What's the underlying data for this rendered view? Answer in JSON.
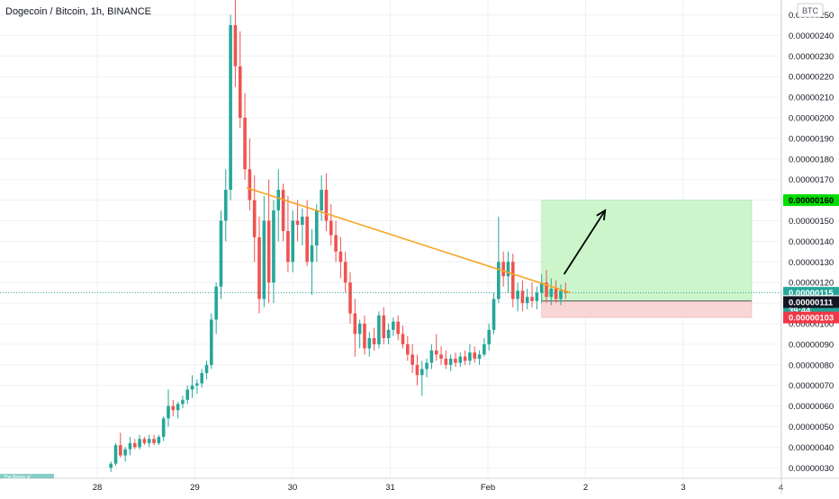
{
  "header": {
    "title": "Dogecoin / Bitcoin, 1h, BINANCE",
    "currency_button": "BTC",
    "bottom_strip": "The Bloom of"
  },
  "colors": {
    "up": "#26a69a",
    "down": "#ef5350",
    "trendline": "#f5a623",
    "arrow": "#000000",
    "target_zone": "#ccf5cc",
    "stop_zone": "#f9d6d6",
    "last_price_tag": "#26a69a",
    "target_tag": "#00dd00",
    "stop_tag": "#f23645",
    "grid": "#eef0f3"
  },
  "chart_data": {
    "type": "candlestick",
    "symbol": "Dogecoin / Bitcoin",
    "interval": "1h",
    "exchange": "BINANCE",
    "x_ticks": [
      "28",
      "29",
      "30",
      "31",
      "Feb",
      "2",
      "3",
      "4"
    ],
    "y_ticks": [
      "0.00000250",
      "0.00000240",
      "0.00000230",
      "0.00000220",
      "0.00000210",
      "0.00000200",
      "0.00000190",
      "0.00000180",
      "0.00000170",
      "0.00000160",
      "0.00000150",
      "0.00000140",
      "0.00000130",
      "0.00000120",
      "0.00000110",
      "0.00000100",
      "0.00000090",
      "0.00000080",
      "0.00000070",
      "0.00000060",
      "0.00000050",
      "0.00000040",
      "0.00000030"
    ],
    "y_range": [
      2.5e-07,
      2.55e-06
    ],
    "y_unit": "BTC",
    "price_tags": [
      {
        "label": "0.00000160",
        "kind": "target",
        "value": 1.6e-06
      },
      {
        "label": "0.00000115",
        "kind": "last",
        "value": 1.15e-06
      },
      {
        "label": "0.00000",
        "kind": "entry",
        "value": 1.11e-06
      },
      {
        "label": "39:44",
        "kind": "countdown",
        "value": 1.065e-06
      },
      {
        "label": "0.00000111",
        "kind": "entry_value",
        "value": 1.105e-06
      },
      {
        "label": "0.00000103",
        "kind": "stop",
        "value": 1.03e-06
      }
    ],
    "trendline": {
      "start": [
        29.53,
        1.66e-06
      ],
      "end": [
        32.85,
        1.15e-06
      ]
    },
    "position": {
      "type": "long",
      "entry": 1.11e-06,
      "target": 1.6e-06,
      "stop": 1.03e-06,
      "start_x": 32.55,
      "end_x": 34.7
    },
    "arrow": {
      "from": [
        32.78,
        1.24e-06
      ],
      "to": [
        33.2,
        1.55e-06
      ]
    },
    "last_price": 1.15e-06,
    "countdown": "39:44",
    "candles_ohlc": [
      [
        3e-07,
        3.3e-07,
        2.8e-07,
        3.2e-07
      ],
      [
        3.2e-07,
        4.2e-07,
        3.1e-07,
        4.1e-07
      ],
      [
        4.1e-07,
        4.7e-07,
        3.5e-07,
        3.6e-07
      ],
      [
        3.6e-07,
        4e-07,
        3.3e-07,
        3.9e-07
      ],
      [
        3.9e-07,
        4.5e-07,
        3.6e-07,
        4.2e-07
      ],
      [
        4.2e-07,
        4.4e-07,
        3.9e-07,
        4e-07
      ],
      [
        4e-07,
        4.6e-07,
        3.9e-07,
        4.4e-07
      ],
      [
        4.4e-07,
        4.5e-07,
        4.1e-07,
        4.2e-07
      ],
      [
        4.2e-07,
        4.6e-07,
        4e-07,
        4.4e-07
      ],
      [
        4.4e-07,
        4.6e-07,
        4.1e-07,
        4.2e-07
      ],
      [
        4.2e-07,
        4.6e-07,
        4.1e-07,
        4.5e-07
      ],
      [
        4.5e-07,
        5.5e-07,
        4.3e-07,
        5.4e-07
      ],
      [
        5.4e-07,
        6.8e-07,
        5e-07,
        6e-07
      ],
      [
        6e-07,
        6.3e-07,
        5.5e-07,
        5.8e-07
      ],
      [
        5.8e-07,
        6.2e-07,
        5.4e-07,
        6.1e-07
      ],
      [
        6.1e-07,
        6.5e-07,
        5.9e-07,
        6.3e-07
      ],
      [
        6.3e-07,
        7e-07,
        6.1e-07,
        6.8e-07
      ],
      [
        6.8e-07,
        7.5e-07,
        6.4e-07,
        7e-07
      ],
      [
        7e-07,
        7.3e-07,
        6.6e-07,
        7.1e-07
      ],
      [
        7.1e-07,
        7.8e-07,
        6.9e-07,
        7.6e-07
      ],
      [
        7.6e-07,
        8.2e-07,
        7.3e-07,
        8e-07
      ],
      [
        8e-07,
        1.05e-06,
        7.8e-07,
        1.02e-06
      ],
      [
        1.02e-06,
        1.2e-06,
        9.5e-07,
        1.18e-06
      ],
      [
        1.18e-06,
        1.55e-06,
        1.12e-06,
        1.5e-06
      ],
      [
        1.5e-06,
        1.75e-06,
        1.4e-06,
        1.65e-06
      ],
      [
        1.65e-06,
        2.5e-06,
        1.6e-06,
        2.45e-06
      ],
      [
        2.45e-06,
        2.58e-06,
        2.15e-06,
        2.25e-06
      ],
      [
        2.25e-06,
        2.42e-06,
        1.95e-06,
        2e-06
      ],
      [
        2e-06,
        2.12e-06,
        1.7e-06,
        1.75e-06
      ],
      [
        1.75e-06,
        1.9e-06,
        1.55e-06,
        1.6e-06
      ],
      [
        1.6e-06,
        1.72e-06,
        1.3e-06,
        1.42e-06
      ],
      [
        1.42e-06,
        1.52e-06,
        1.05e-06,
        1.12e-06
      ],
      [
        1.12e-06,
        1.62e-06,
        1.08e-06,
        1.5e-06
      ],
      [
        1.5e-06,
        1.7e-06,
        1.1e-06,
        1.2e-06
      ],
      [
        1.2e-06,
        1.6e-06,
        1.1e-06,
        1.55e-06
      ],
      [
        1.55e-06,
        1.75e-06,
        1.4e-06,
        1.65e-06
      ],
      [
        1.65e-06,
        1.68e-06,
        1.4e-06,
        1.45e-06
      ],
      [
        1.45e-06,
        1.62e-06,
        1.25e-06,
        1.3e-06
      ],
      [
        1.3e-06,
        1.55e-06,
        1.25e-06,
        1.5e-06
      ],
      [
        1.5e-06,
        1.6e-06,
        1.4e-06,
        1.48e-06
      ],
      [
        1.48e-06,
        1.56e-06,
        1.38e-06,
        1.52e-06
      ],
      [
        1.52e-06,
        1.6e-06,
        1.28e-06,
        1.3e-06
      ],
      [
        1.3e-06,
        1.46e-06,
        1.14e-06,
        1.38e-06
      ],
      [
        1.38e-06,
        1.58e-06,
        1.3e-06,
        1.55e-06
      ],
      [
        1.55e-06,
        1.72e-06,
        1.5e-06,
        1.65e-06
      ],
      [
        1.65e-06,
        1.73e-06,
        1.45e-06,
        1.5e-06
      ],
      [
        1.5e-06,
        1.58e-06,
        1.38e-06,
        1.43e-06
      ],
      [
        1.43e-06,
        1.5e-06,
        1.3e-06,
        1.35e-06
      ],
      [
        1.35e-06,
        1.42e-06,
        1.22e-06,
        1.3e-06
      ],
      [
        1.3e-06,
        1.35e-06,
        1.15e-06,
        1.2e-06
      ],
      [
        1.2e-06,
        1.25e-06,
        1e-06,
        1.05e-06
      ],
      [
        1.05e-06,
        1.12e-06,
        8.4e-07,
        9.5e-07
      ],
      [
        9.5e-07,
        1.02e-06,
        8.8e-07,
        1e-06
      ],
      [
        1e-06,
        1.04e-06,
        8.5e-07,
        8.8e-07
      ],
      [
        8.8e-07,
        9.6e-07,
        8.4e-07,
        9.3e-07
      ],
      [
        9.3e-07,
        9.8e-07,
        8.7e-07,
        9e-07
      ],
      [
        9e-07,
        1.06e-06,
        8.8e-07,
        1.04e-06
      ],
      [
        1.04e-06,
        1.08e-06,
        9e-07,
        9.3e-07
      ],
      [
        9.3e-07,
        1e-06,
        9e-07,
        9.7e-07
      ],
      [
        9.7e-07,
        1.03e-06,
        9.4e-07,
        1.01e-06
      ],
      [
        1.01e-06,
        1.04e-06,
        9.2e-07,
        9.5e-07
      ],
      [
        9.5e-07,
        9.9e-07,
        8.8e-07,
        9e-07
      ],
      [
        9e-07,
        9.4e-07,
        8.2e-07,
        8.5e-07
      ],
      [
        8.5e-07,
        9e-07,
        7.6e-07,
        8e-07
      ],
      [
        8e-07,
        8.5e-07,
        7e-07,
        7.5e-07
      ],
      [
        7.5e-07,
        8.2e-07,
        6.5e-07,
        7.8e-07
      ],
      [
        7.8e-07,
        8.3e-07,
        7.4e-07,
        8.1e-07
      ],
      [
        8.1e-07,
        9e-07,
        7.8e-07,
        8.7e-07
      ],
      [
        8.7e-07,
        9.5e-07,
        8.2e-07,
        8.5e-07
      ],
      [
        8.5e-07,
        8.9e-07,
        8e-07,
        8.3e-07
      ],
      [
        8.3e-07,
        8.7e-07,
        7.8e-07,
        8e-07
      ],
      [
        8e-07,
        8.5e-07,
        7.7e-07,
        8.3e-07
      ],
      [
        8.3e-07,
        8.6e-07,
        7.9e-07,
        8.1e-07
      ],
      [
        8.1e-07,
        8.6e-07,
        7.9e-07,
        8.4e-07
      ],
      [
        8.4e-07,
        8.7e-07,
        8e-07,
        8.2e-07
      ],
      [
        8.2e-07,
        9e-07,
        8e-07,
        8.6e-07
      ],
      [
        8.6e-07,
        8.9e-07,
        8.1e-07,
        8.3e-07
      ],
      [
        8.3e-07,
        8.7e-07,
        8e-07,
        8.5e-07
      ],
      [
        8.5e-07,
        9.3e-07,
        8.4e-07,
        9e-07
      ],
      [
        9e-07,
        1e-06,
        8.7e-07,
        9.7e-07
      ],
      [
        9.7e-07,
        1.15e-06,
        9.5e-07,
        1.12e-06
      ],
      [
        1.12e-06,
        1.52e-06,
        1.1e-06,
        1.3e-06
      ],
      [
        1.3e-06,
        1.35e-06,
        1.18e-06,
        1.23e-06
      ],
      [
        1.23e-06,
        1.35e-06,
        1.15e-06,
        1.3e-06
      ],
      [
        1.3e-06,
        1.34e-06,
        1.08e-06,
        1.12e-06
      ],
      [
        1.12e-06,
        1.2e-06,
        1.06e-06,
        1.16e-06
      ],
      [
        1.16e-06,
        1.21e-06,
        1.06e-06,
        1.1e-06
      ],
      [
        1.1e-06,
        1.17e-06,
        1.07e-06,
        1.13e-06
      ],
      [
        1.13e-06,
        1.2e-06,
        1.08e-06,
        1.11e-06
      ],
      [
        1.11e-06,
        1.18e-06,
        1.07e-06,
        1.15e-06
      ],
      [
        1.15e-06,
        1.24e-06,
        1.1e-06,
        1.2e-06
      ],
      [
        1.2e-06,
        1.26e-06,
        1.1e-06,
        1.13e-06
      ],
      [
        1.13e-06,
        1.22e-06,
        1.09e-06,
        1.17e-06
      ],
      [
        1.17e-06,
        1.21e-06,
        1.1e-06,
        1.12e-06
      ],
      [
        1.12e-06,
        1.19e-06,
        1.09e-06,
        1.16e-06
      ],
      [
        1.16e-06,
        1.2e-06,
        1.12e-06,
        1.15e-06
      ]
    ]
  }
}
